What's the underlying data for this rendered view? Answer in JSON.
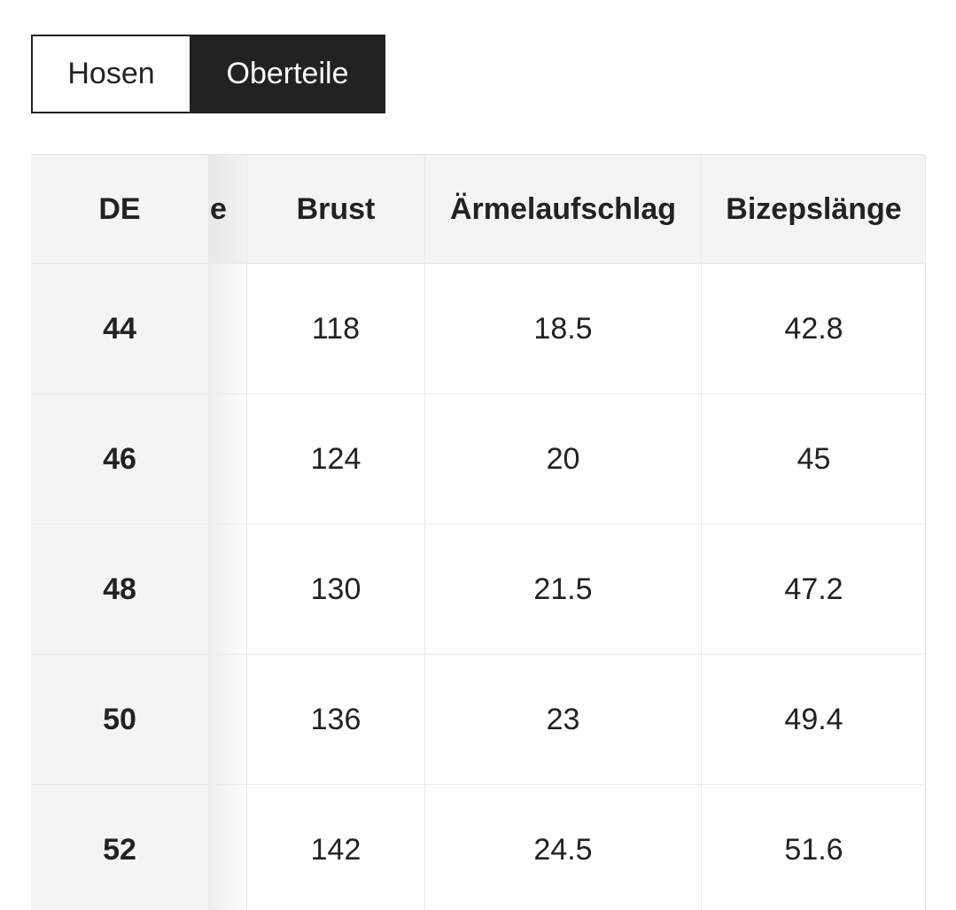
{
  "tabs": [
    {
      "label": "Hosen",
      "active": false
    },
    {
      "label": "Oberteile",
      "active": true
    }
  ],
  "table": {
    "headers": {
      "de": "DE",
      "hidden_partial": "e",
      "brust": "Brust",
      "aermel": "Ärmelaufschlag",
      "bizeps": "Bizepslänge"
    },
    "rows": [
      {
        "de": "44",
        "brust": "118",
        "aermel": "18.5",
        "bizeps": "42.8"
      },
      {
        "de": "46",
        "brust": "124",
        "aermel": "20",
        "bizeps": "45"
      },
      {
        "de": "48",
        "brust": "130",
        "aermel": "21.5",
        "bizeps": "47.2"
      },
      {
        "de": "50",
        "brust": "136",
        "aermel": "23",
        "bizeps": "49.4"
      },
      {
        "de": "52",
        "brust": "142",
        "aermel": "24.5",
        "bizeps": "51.6"
      }
    ]
  },
  "colors": {
    "active_tab_bg": "#222222",
    "header_bg": "#f4f4f4",
    "text": "#222222"
  }
}
